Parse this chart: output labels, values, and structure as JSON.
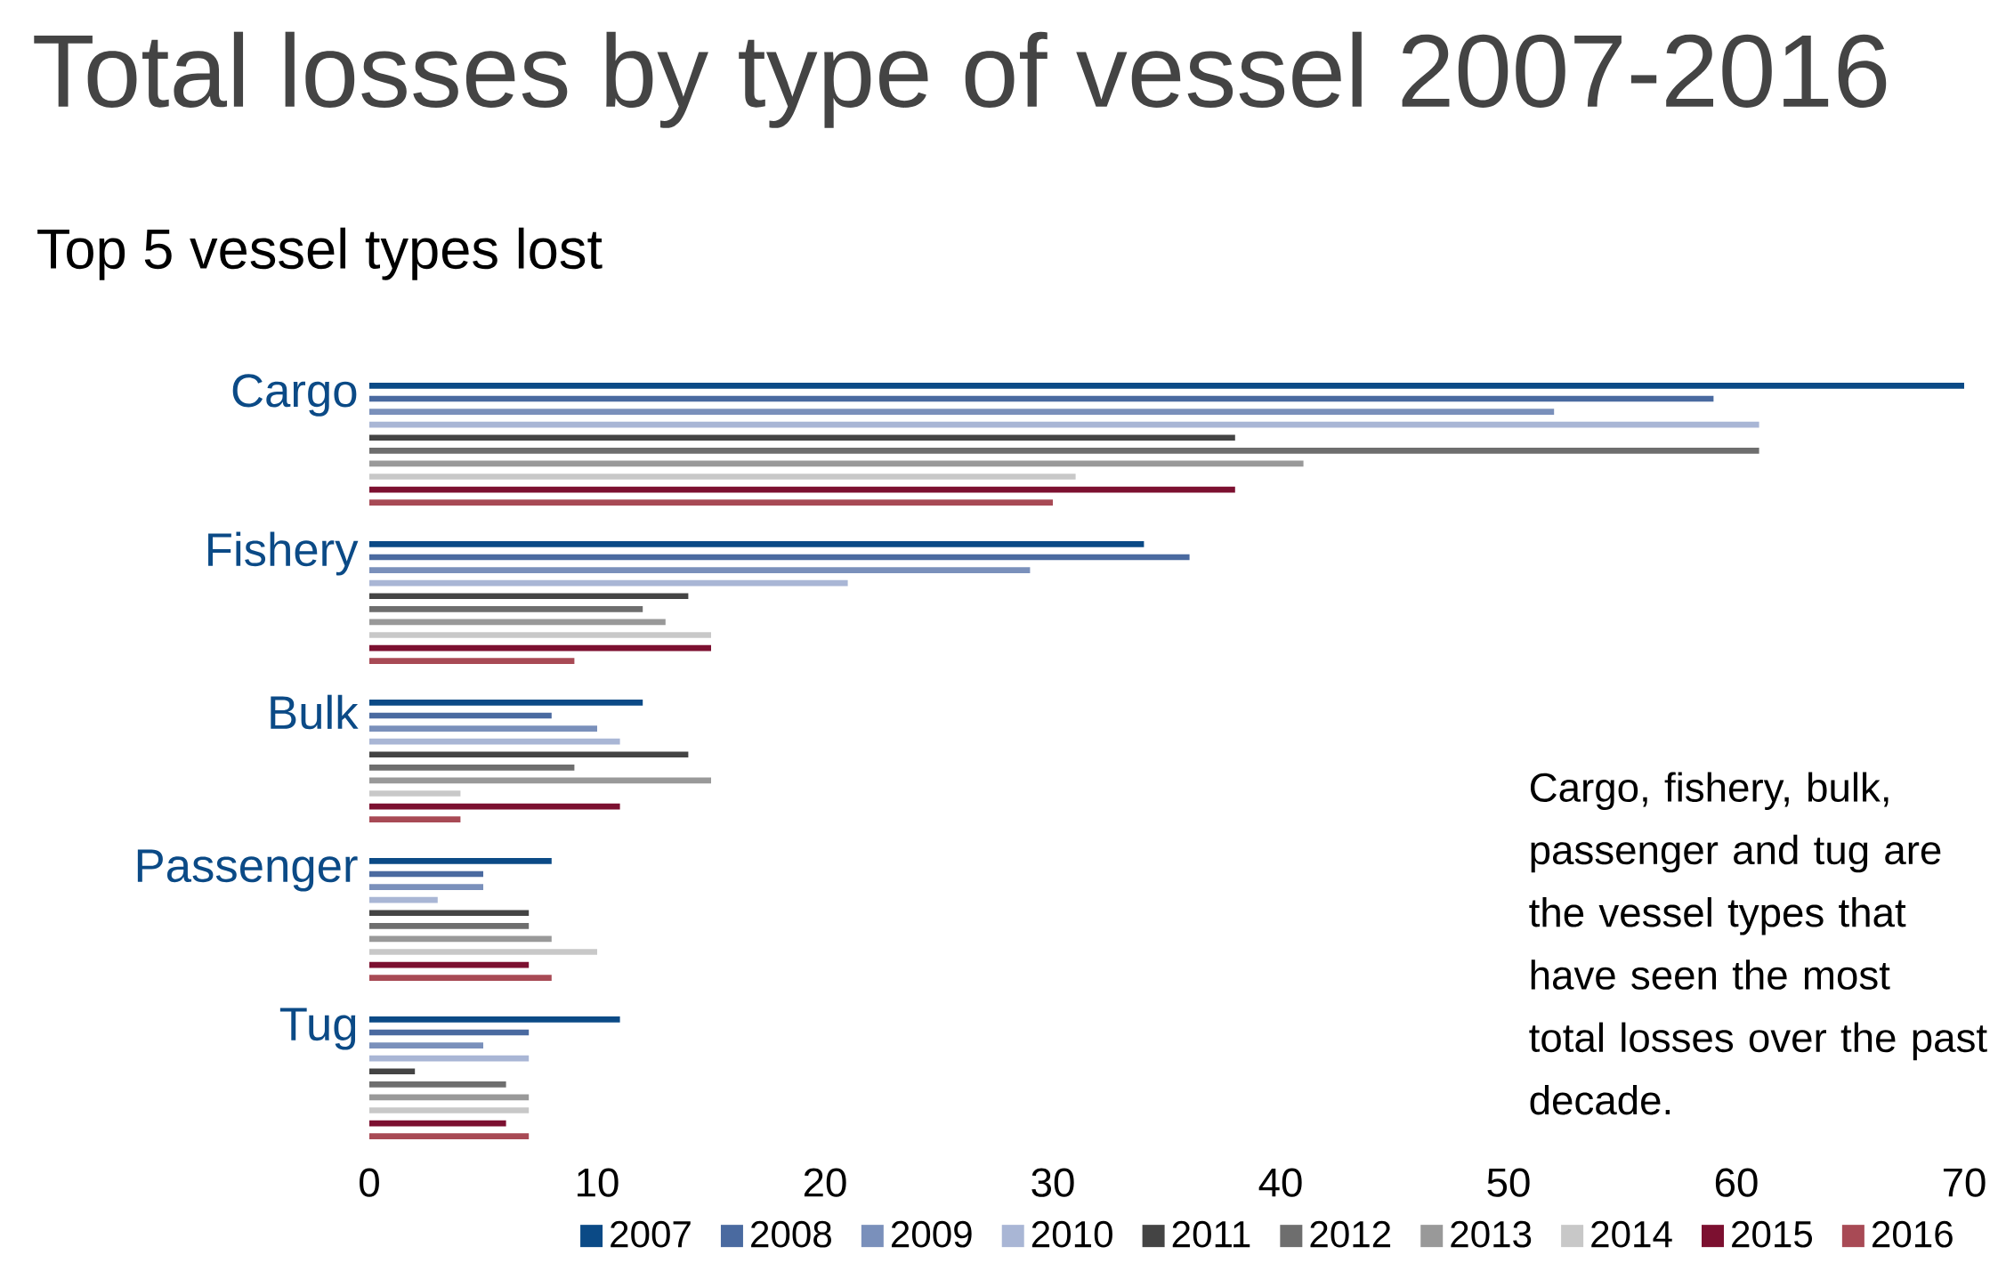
{
  "chart_data": {
    "type": "bar",
    "orientation": "horizontal",
    "title": "Total losses by type of vessel 2007-2016",
    "subtitle": "Top 5 vessel types lost",
    "categories": [
      "Cargo",
      "Fishery",
      "Bulk",
      "Passenger",
      "Tug"
    ],
    "series": [
      {
        "name": "2007",
        "color": "#0b4a86",
        "values": [
          70,
          34,
          12,
          8,
          11
        ]
      },
      {
        "name": "2008",
        "color": "#4a6aa0",
        "values": [
          59,
          36,
          8,
          5,
          7
        ]
      },
      {
        "name": "2009",
        "color": "#7a90bb",
        "values": [
          52,
          29,
          10,
          5,
          5
        ]
      },
      {
        "name": "2010",
        "color": "#a9b6d5",
        "values": [
          61,
          21,
          11,
          3,
          7
        ]
      },
      {
        "name": "2011",
        "color": "#444444",
        "values": [
          38,
          14,
          14,
          7,
          2
        ]
      },
      {
        "name": "2012",
        "color": "#6e6e6e",
        "values": [
          61,
          12,
          9,
          7,
          6
        ]
      },
      {
        "name": "2013",
        "color": "#999999",
        "values": [
          41,
          13,
          15,
          8,
          7
        ]
      },
      {
        "name": "2014",
        "color": "#c8c8c8",
        "values": [
          31,
          15,
          4,
          10,
          7
        ]
      },
      {
        "name": "2015",
        "color": "#7c1030",
        "values": [
          38,
          15,
          11,
          7,
          6
        ]
      },
      {
        "name": "2016",
        "color": "#a84a55",
        "values": [
          30,
          9,
          4,
          8,
          7
        ]
      }
    ],
    "xlim": [
      0,
      70
    ],
    "xticks": [
      0,
      10,
      20,
      30,
      40,
      50,
      60,
      70
    ],
    "grid": false,
    "legend": "bottom right",
    "annotations": [
      "Cargo, fishery, bulk, passenger and tug are the vessel types that have seen the most total losses over the past decade."
    ]
  }
}
